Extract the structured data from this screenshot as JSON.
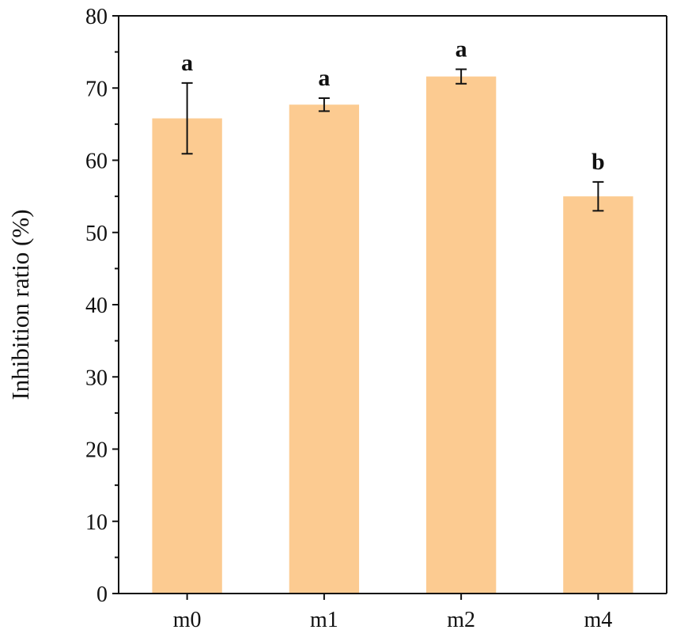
{
  "chart_data": {
    "type": "bar",
    "title": "",
    "xlabel": "",
    "ylabel": "Inhibition ratio (%)",
    "categories": [
      "m0",
      "m1",
      "m2",
      "m4"
    ],
    "values": [
      65.8,
      67.7,
      71.6,
      55.0
    ],
    "errors": [
      4.9,
      0.9,
      1.0,
      2.0
    ],
    "significance": [
      "a",
      "a",
      "a",
      "b"
    ],
    "ylim": [
      0,
      80
    ],
    "yticks": [
      0,
      10,
      20,
      30,
      40,
      50,
      60,
      70,
      80
    ],
    "grid": false,
    "legend": "none",
    "bar_color": "#FCCB91",
    "axis_color": "#111111"
  }
}
